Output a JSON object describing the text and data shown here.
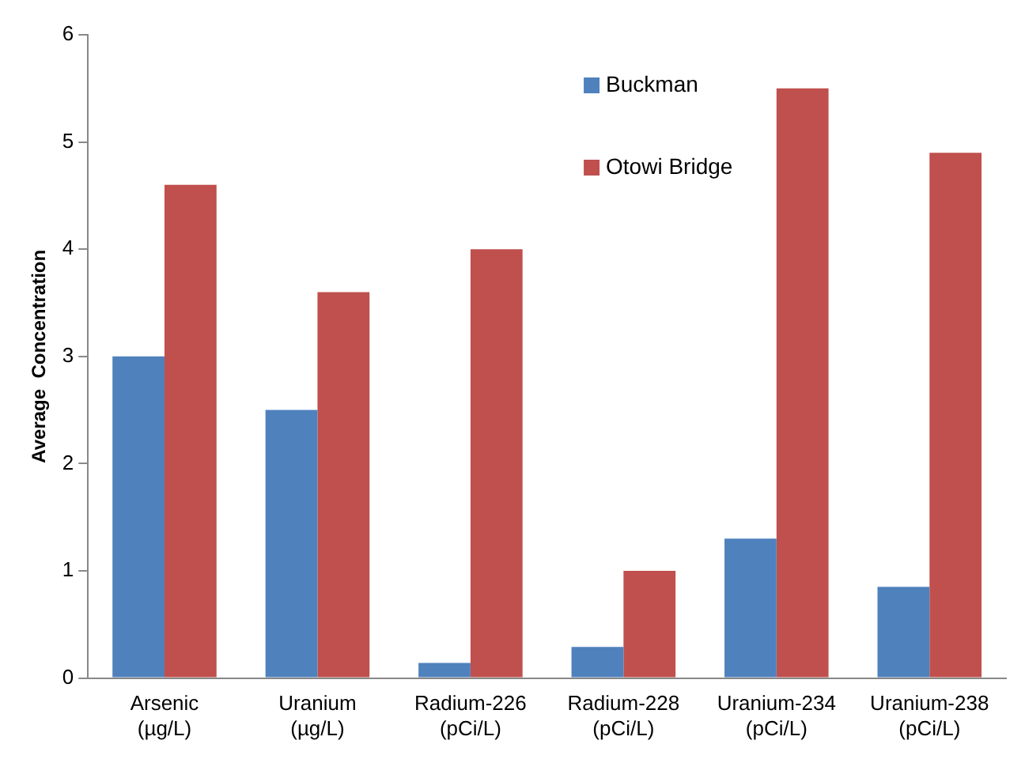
{
  "chart_data": {
    "type": "bar",
    "ylabel": "Average  Concentration",
    "categories": [
      "Arsenic (µg/L)",
      "Uranium (µg/L)",
      "Radium-226 (pCi/L)",
      "Radium-228 (pCi/L)",
      "Uranium-234 (pCi/L)",
      "Uranium-238 (pCi/L)"
    ],
    "series": [
      {
        "name": "Buckman",
        "color": "#4f81bd",
        "values": [
          3.0,
          2.5,
          0.14,
          0.29,
          1.3,
          0.85
        ]
      },
      {
        "name": "Otowi Bridge",
        "color": "#c0504d",
        "values": [
          4.6,
          3.6,
          4.0,
          1.0,
          5.5,
          4.9
        ]
      }
    ],
    "ylim": [
      0,
      6
    ],
    "yticks": [
      0,
      1,
      2,
      3,
      4,
      5,
      6
    ],
    "grid": false,
    "legend": "top right"
  }
}
